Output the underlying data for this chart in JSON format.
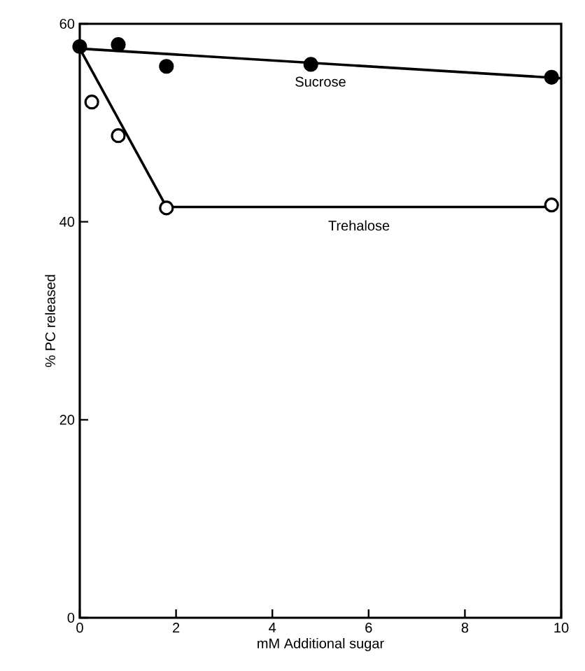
{
  "chart_data": {
    "type": "line",
    "xlabel": "mM Additional sugar",
    "ylabel": "% PC released",
    "xlim": [
      0,
      10
    ],
    "ylim": [
      0,
      60
    ],
    "xticks": [
      0,
      2,
      4,
      6,
      8,
      10
    ],
    "yticks": [
      0,
      20,
      40,
      60
    ],
    "series": [
      {
        "type": "scatter",
        "marker": "circle",
        "color": "#000000",
        "x": [
          0,
          0.8,
          1.8,
          4.8,
          9.8
        ],
        "values": [
          57.7,
          57.9,
          55.7,
          55.9,
          54.6
        ]
      },
      {
        "type": "scatter",
        "marker": "circle",
        "color": "#ffffff",
        "x": [
          0.25,
          0.8,
          1.8,
          9.8
        ],
        "values": [
          52.1,
          48.7,
          41.4,
          41.7
        ]
      },
      {
        "name": "Sucrose",
        "marker": "none",
        "color": "#000000",
        "x": [
          0,
          10
        ],
        "values": [
          57.5,
          54.5
        ]
      },
      {
        "name": "Trehalose",
        "marker": "none",
        "color": "#000000",
        "x": [
          0,
          1.8,
          9.8
        ],
        "values": [
          57.5,
          41.5,
          41.5
        ]
      }
    ],
    "grid": false
  }
}
